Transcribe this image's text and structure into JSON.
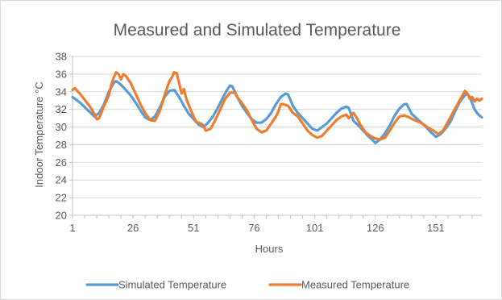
{
  "chart_data": {
    "type": "line",
    "title": "Measured and Simulated Temperature",
    "xlabel": "Hours",
    "ylabel": "Indoor Temperature °C",
    "xlim": [
      1,
      170
    ],
    "ylim": [
      20,
      38
    ],
    "y_ticks": [
      20,
      22,
      24,
      26,
      28,
      30,
      32,
      34,
      36,
      38
    ],
    "x_ticks": [
      1,
      26,
      51,
      76,
      101,
      126,
      151
    ],
    "grid": "horizontal",
    "legend": "bottom",
    "series": [
      {
        "name": "Simulated Temperature",
        "color": "#5b9bd5",
        "points": [
          [
            1,
            33.4
          ],
          [
            4,
            32.8
          ],
          [
            7,
            32.0
          ],
          [
            10,
            31.2
          ],
          [
            12,
            31.6
          ],
          [
            14,
            32.6
          ],
          [
            16,
            34.0
          ],
          [
            18,
            35.0
          ],
          [
            19,
            35.2
          ],
          [
            21,
            34.8
          ],
          [
            23,
            34.2
          ],
          [
            25,
            33.6
          ],
          [
            27,
            32.8
          ],
          [
            29,
            31.9
          ],
          [
            31,
            31.1
          ],
          [
            33,
            30.8
          ],
          [
            35,
            31.2
          ],
          [
            37,
            32.2
          ],
          [
            39,
            33.4
          ],
          [
            41,
            34.1
          ],
          [
            43,
            34.2
          ],
          [
            45,
            33.4
          ],
          [
            47,
            32.4
          ],
          [
            49,
            31.5
          ],
          [
            51,
            30.9
          ],
          [
            53,
            30.3
          ],
          [
            55,
            30.0
          ],
          [
            57,
            30.5
          ],
          [
            59,
            31.2
          ],
          [
            61,
            32.2
          ],
          [
            63,
            33.3
          ],
          [
            65,
            34.3
          ],
          [
            66,
            34.7
          ],
          [
            67,
            34.6
          ],
          [
            69,
            33.4
          ],
          [
            71,
            32.4
          ],
          [
            73,
            31.6
          ],
          [
            75,
            30.9
          ],
          [
            77,
            30.5
          ],
          [
            79,
            30.5
          ],
          [
            81,
            30.9
          ],
          [
            83,
            31.6
          ],
          [
            85,
            32.6
          ],
          [
            87,
            33.4
          ],
          [
            89,
            33.8
          ],
          [
            90,
            33.7
          ],
          [
            92,
            32.4
          ],
          [
            94,
            31.6
          ],
          [
            96,
            31.0
          ],
          [
            98,
            30.4
          ],
          [
            100,
            29.8
          ],
          [
            102,
            29.6
          ],
          [
            104,
            30.0
          ],
          [
            106,
            30.4
          ],
          [
            108,
            31.0
          ],
          [
            110,
            31.6
          ],
          [
            112,
            32.1
          ],
          [
            114,
            32.3
          ],
          [
            115,
            32.2
          ],
          [
            117,
            30.7
          ],
          [
            119,
            30.2
          ],
          [
            121,
            29.6
          ],
          [
            123,
            29.0
          ],
          [
            125,
            28.5
          ],
          [
            126,
            28.2
          ],
          [
            128,
            28.6
          ],
          [
            130,
            29.3
          ],
          [
            132,
            30.2
          ],
          [
            134,
            31.3
          ],
          [
            136,
            32.1
          ],
          [
            138,
            32.6
          ],
          [
            139,
            32.6
          ],
          [
            141,
            31.5
          ],
          [
            143,
            31.0
          ],
          [
            145,
            30.5
          ],
          [
            147,
            30.0
          ],
          [
            149,
            29.4
          ],
          [
            151,
            28.9
          ],
          [
            153,
            29.2
          ],
          [
            155,
            29.8
          ],
          [
            157,
            30.6
          ],
          [
            159,
            31.8
          ],
          [
            161,
            32.9
          ],
          [
            163,
            33.6
          ],
          [
            164,
            33.8
          ],
          [
            165,
            33.4
          ],
          [
            166,
            32.7
          ],
          [
            167,
            32.0
          ],
          [
            168,
            31.6
          ],
          [
            169,
            31.3
          ],
          [
            170,
            31.1
          ]
        ]
      },
      {
        "name": "Measured Temperature",
        "color": "#ed7d31",
        "points": [
          [
            1,
            34.2
          ],
          [
            2,
            34.4
          ],
          [
            4,
            33.8
          ],
          [
            6,
            33.1
          ],
          [
            8,
            32.4
          ],
          [
            10,
            31.5
          ],
          [
            11,
            30.9
          ],
          [
            12,
            31.0
          ],
          [
            14,
            32.4
          ],
          [
            16,
            33.6
          ],
          [
            17,
            34.8
          ],
          [
            18,
            35.6
          ],
          [
            19,
            36.2
          ],
          [
            20,
            36.0
          ],
          [
            21,
            35.4
          ],
          [
            22,
            36.0
          ],
          [
            23,
            35.8
          ],
          [
            25,
            35.0
          ],
          [
            27,
            33.8
          ],
          [
            29,
            32.6
          ],
          [
            31,
            31.6
          ],
          [
            33,
            30.8
          ],
          [
            35,
            30.7
          ],
          [
            37,
            31.8
          ],
          [
            39,
            33.6
          ],
          [
            41,
            35.2
          ],
          [
            42,
            35.6
          ],
          [
            43,
            36.2
          ],
          [
            44,
            36.1
          ],
          [
            45,
            35.0
          ],
          [
            46,
            33.8
          ],
          [
            47,
            34.3
          ],
          [
            48,
            33.2
          ],
          [
            50,
            31.8
          ],
          [
            52,
            30.6
          ],
          [
            54,
            30.4
          ],
          [
            55,
            30.2
          ],
          [
            56,
            29.6
          ],
          [
            58,
            29.8
          ],
          [
            60,
            30.8
          ],
          [
            62,
            32.0
          ],
          [
            64,
            33.2
          ],
          [
            66,
            33.9
          ],
          [
            68,
            33.9
          ],
          [
            69,
            33.4
          ],
          [
            71,
            32.7
          ],
          [
            73,
            31.9
          ],
          [
            75,
            30.8
          ],
          [
            77,
            29.8
          ],
          [
            79,
            29.4
          ],
          [
            81,
            29.6
          ],
          [
            83,
            30.4
          ],
          [
            85,
            31.2
          ],
          [
            86,
            31.8
          ],
          [
            87,
            32.6
          ],
          [
            88,
            32.6
          ],
          [
            90,
            32.4
          ],
          [
            92,
            31.6
          ],
          [
            94,
            31.2
          ],
          [
            96,
            30.4
          ],
          [
            98,
            29.6
          ],
          [
            100,
            29.1
          ],
          [
            102,
            28.8
          ],
          [
            104,
            29.0
          ],
          [
            106,
            29.6
          ],
          [
            108,
            30.2
          ],
          [
            110,
            30.8
          ],
          [
            112,
            31.2
          ],
          [
            114,
            31.4
          ],
          [
            115,
            31.0
          ],
          [
            117,
            31.6
          ],
          [
            118,
            31.2
          ],
          [
            120,
            30.2
          ],
          [
            122,
            29.4
          ],
          [
            124,
            29.0
          ],
          [
            126,
            28.7
          ],
          [
            128,
            28.6
          ],
          [
            130,
            28.8
          ],
          [
            132,
            29.6
          ],
          [
            134,
            30.5
          ],
          [
            136,
            31.2
          ],
          [
            138,
            31.3
          ],
          [
            140,
            31.1
          ],
          [
            142,
            30.8
          ],
          [
            144,
            30.6
          ],
          [
            146,
            30.3
          ],
          [
            148,
            29.9
          ],
          [
            150,
            29.6
          ],
          [
            152,
            29.2
          ],
          [
            154,
            29.6
          ],
          [
            156,
            30.6
          ],
          [
            158,
            31.6
          ],
          [
            160,
            32.6
          ],
          [
            162,
            33.6
          ],
          [
            163,
            34.1
          ],
          [
            164,
            33.8
          ],
          [
            165,
            33.2
          ],
          [
            166,
            33.4
          ],
          [
            167,
            32.9
          ],
          [
            168,
            33.2
          ],
          [
            169,
            33.0
          ],
          [
            170,
            33.2
          ]
        ]
      }
    ]
  }
}
